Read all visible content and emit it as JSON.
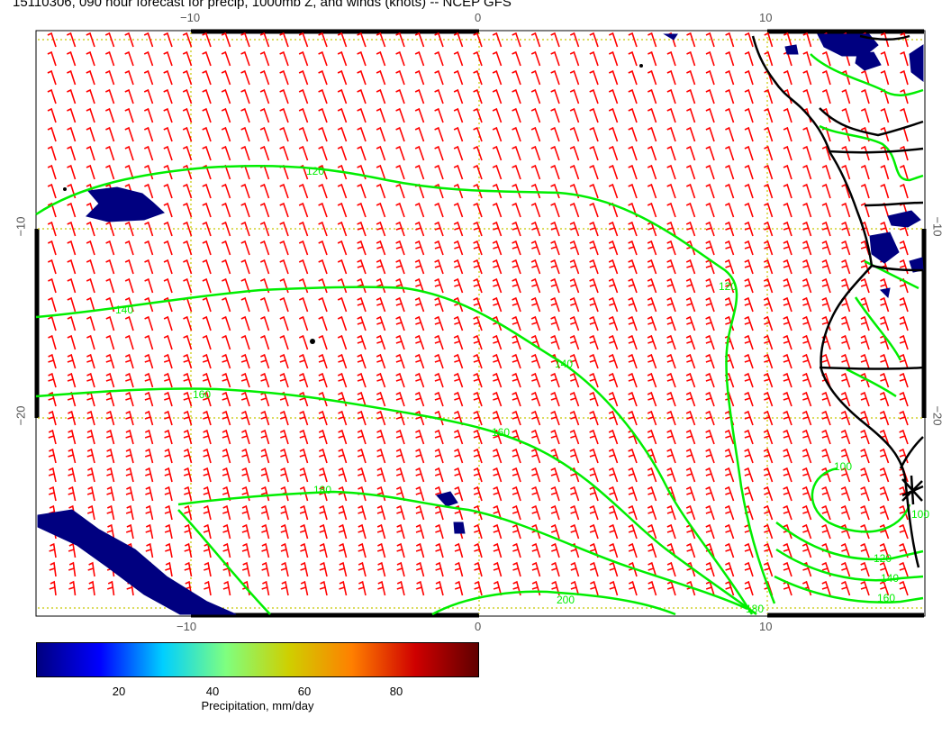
{
  "title": "15110306, 090 hour forecast for precip, 1000mb Z, and winds (knots) -- NCEP GFS",
  "axes": {
    "top_ticks": [
      "−10",
      "0",
      "10"
    ],
    "bottom_ticks": [
      "−10",
      "0",
      "10"
    ],
    "left_ticks": [
      "−10",
      "−20"
    ],
    "right_ticks": [
      "−10",
      "−20"
    ]
  },
  "contours": {
    "color": "#00ee00",
    "labels": [
      "120",
      "140",
      "160",
      "180",
      "120",
      "140",
      "160",
      "200",
      "180",
      "100",
      "120",
      "140",
      "160",
      "100"
    ]
  },
  "wind_barbs": {
    "color": "#ff0000"
  },
  "precip_color": "#000080",
  "colorbar": {
    "ticks": [
      "20",
      "40",
      "60",
      "80"
    ],
    "label": "Precipitation, mm/day",
    "stops": [
      "#000080",
      "#0000ff",
      "#00cfff",
      "#7fff7f",
      "#cfcf00",
      "#ff7f00",
      "#cf0000",
      "#600000"
    ]
  }
}
